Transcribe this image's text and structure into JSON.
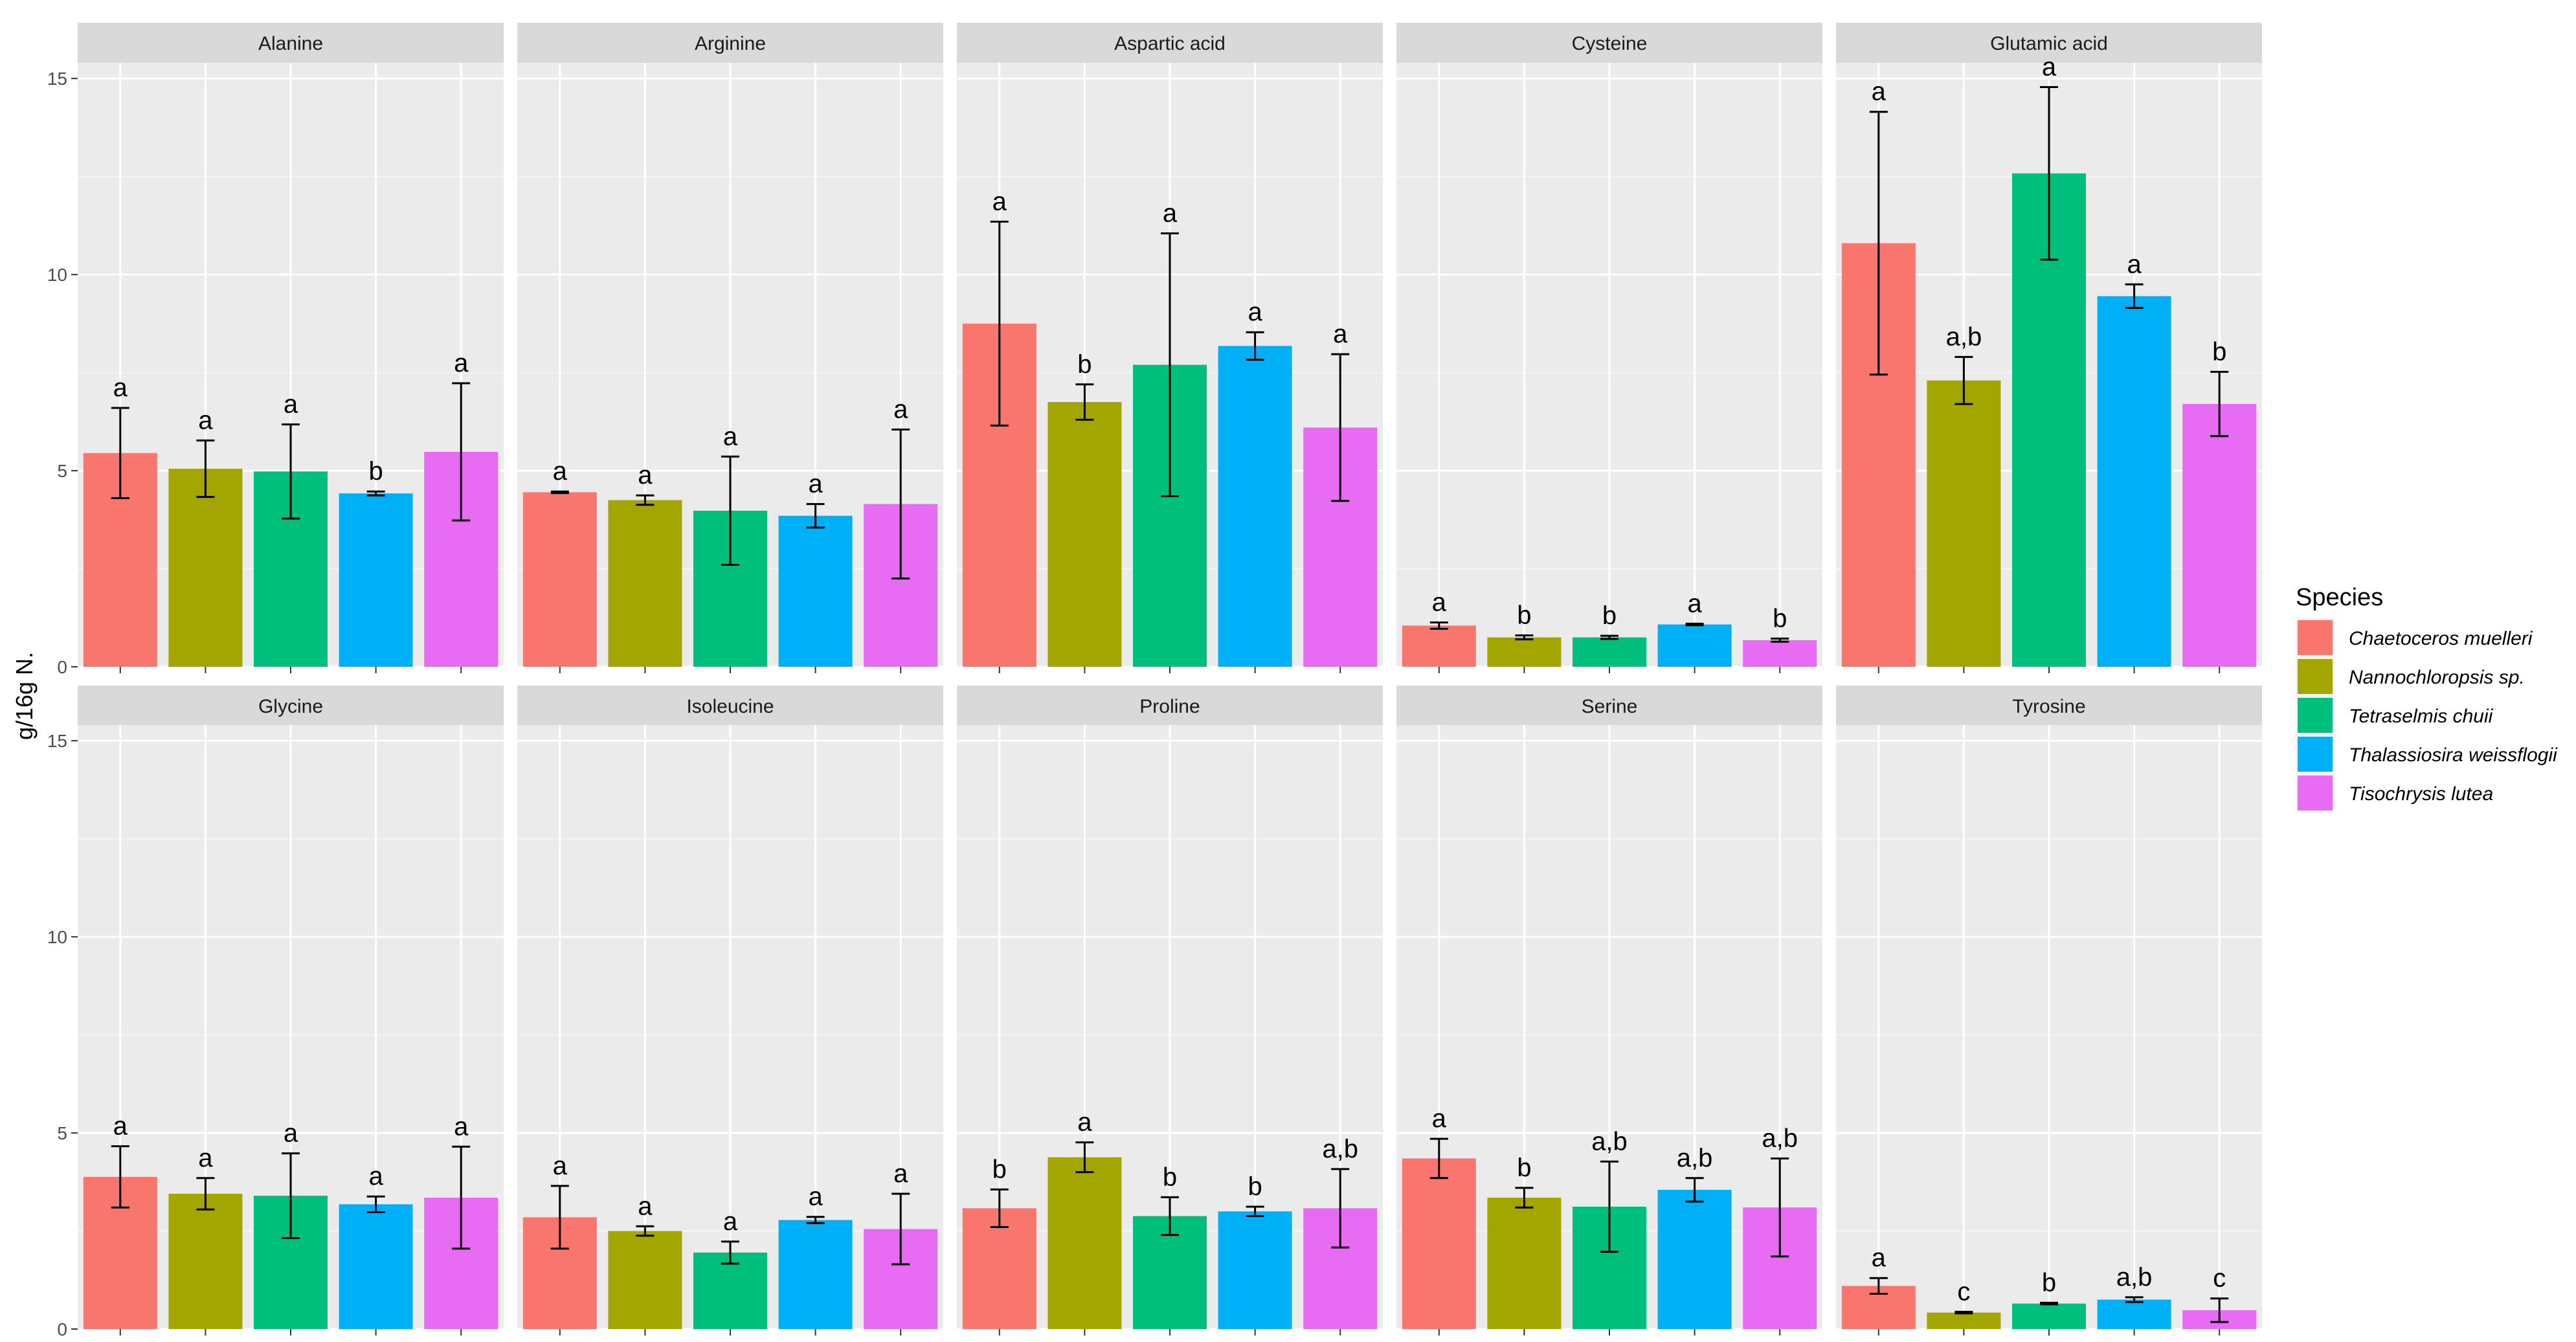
{
  "chart_data": {
    "type": "bar",
    "ylabel": "g/16g N.",
    "xlabel": "",
    "ylim": [
      0,
      15.4
    ],
    "y_ticks": [
      0,
      5,
      10,
      15
    ],
    "grid": true,
    "legend": {
      "title": "Species",
      "position": "right",
      "entries": [
        {
          "name": "Chaetoceros muelleri",
          "color": "#F8766D"
        },
        {
          "name": "Nannochloropsis sp.",
          "color": "#A3A500"
        },
        {
          "name": "Tetraselmis chuii",
          "color": "#00BF7D"
        },
        {
          "name": "Thalassiosira weissflogii",
          "color": "#00B0F6"
        },
        {
          "name": "Tisochrysis lutea",
          "color": "#E76BF3"
        }
      ]
    },
    "panels": [
      {
        "title": "Alanine",
        "values": [
          5.45,
          5.05,
          4.98,
          4.42,
          5.48
        ],
        "errors": [
          1.15,
          0.72,
          1.2,
          0.05,
          1.75
        ],
        "labels": [
          "a",
          "a",
          "a",
          "b",
          "a"
        ]
      },
      {
        "title": "Arginine",
        "values": [
          4.45,
          4.25,
          3.98,
          3.85,
          4.15
        ],
        "errors": [
          0.02,
          0.12,
          1.38,
          0.3,
          1.9
        ],
        "labels": [
          "a",
          "a",
          "a",
          "a",
          "a"
        ]
      },
      {
        "title": "Aspartic acid",
        "values": [
          8.75,
          6.75,
          7.7,
          8.18,
          6.1
        ],
        "errors": [
          2.6,
          0.45,
          3.35,
          0.35,
          1.87
        ],
        "labels": [
          "a",
          "b",
          "a",
          "a",
          "a"
        ]
      },
      {
        "title": "Cysteine",
        "values": [
          1.05,
          0.75,
          0.75,
          1.08,
          0.68
        ],
        "errors": [
          0.08,
          0.05,
          0.04,
          0.02,
          0.04
        ],
        "labels": [
          "a",
          "b",
          "b",
          "a",
          "b"
        ]
      },
      {
        "title": "Glutamic acid",
        "values": [
          10.8,
          7.3,
          12.58,
          9.45,
          6.7
        ],
        "errors": [
          3.35,
          0.6,
          2.2,
          0.3,
          0.82
        ],
        "labels": [
          "a",
          "a,b",
          "a",
          "a",
          "b"
        ]
      },
      {
        "title": "Glycine",
        "values": [
          3.88,
          3.45,
          3.4,
          3.18,
          3.35
        ],
        "errors": [
          0.78,
          0.4,
          1.08,
          0.2,
          1.3
        ],
        "labels": [
          "a",
          "a",
          "a",
          "a",
          "a"
        ]
      },
      {
        "title": "Isoleucine",
        "values": [
          2.85,
          2.5,
          1.95,
          2.78,
          2.55
        ],
        "errors": [
          0.8,
          0.12,
          0.28,
          0.08,
          0.9
        ],
        "labels": [
          "a",
          "a",
          "a",
          "a",
          "a"
        ]
      },
      {
        "title": "Proline",
        "values": [
          3.08,
          4.38,
          2.88,
          3.0,
          3.08
        ],
        "errors": [
          0.48,
          0.38,
          0.48,
          0.12,
          1.0
        ],
        "labels": [
          "b",
          "a",
          "b",
          "b",
          "a,b"
        ]
      },
      {
        "title": "Serine",
        "values": [
          4.35,
          3.35,
          3.12,
          3.55,
          3.1
        ],
        "errors": [
          0.5,
          0.25,
          1.15,
          0.3,
          1.25
        ],
        "labels": [
          "a",
          "b",
          "a,b",
          "a,b",
          "a,b"
        ]
      },
      {
        "title": "Tyrosine",
        "values": [
          1.1,
          0.42,
          0.65,
          0.75,
          0.48
        ],
        "errors": [
          0.2,
          0.02,
          0.02,
          0.06,
          0.3
        ],
        "labels": [
          "a",
          "c",
          "b",
          "a,b",
          "c"
        ]
      }
    ]
  }
}
